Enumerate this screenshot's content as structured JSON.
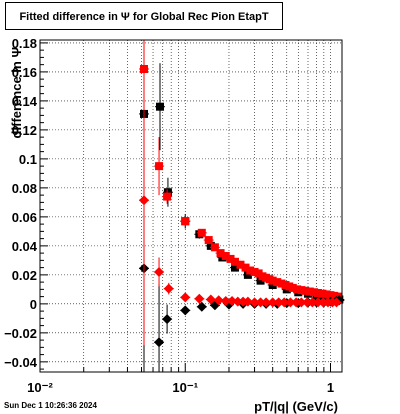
{
  "title": "Fitted difference in  Ψ  for Global Rec Pion EtapT",
  "footer": "Sun Dec  1 10:26:36 2024",
  "chart_data": {
    "type": "scatter",
    "title": "Fitted difference in  Ψ  for Global Rec Pion EtapT",
    "xlabel": "pT/|q| (GeV/c)",
    "ylabel": "difference in  Ψ",
    "x_scale": "log",
    "xlim": [
      0.01,
      1.2
    ],
    "ylim": [
      -0.047,
      0.182
    ],
    "grid": true,
    "x_ticks": [
      {
        "value": 0.01,
        "label": "10⁻²"
      },
      {
        "value": 0.1,
        "label": "10⁻¹"
      },
      {
        "value": 1,
        "label": "1"
      }
    ],
    "y_ticks": [
      {
        "value": -0.04,
        "label": "−0.04"
      },
      {
        "value": -0.02,
        "label": "−0.02"
      },
      {
        "value": 0,
        "label": "0"
      },
      {
        "value": 0.02,
        "label": "0.02"
      },
      {
        "value": 0.04,
        "label": "0.04"
      },
      {
        "value": 0.06,
        "label": "0.06"
      },
      {
        "value": 0.08,
        "label": "0.08"
      },
      {
        "value": 0.1,
        "label": "0.1"
      },
      {
        "value": 0.12,
        "label": "0.12"
      },
      {
        "value": 0.14,
        "label": "0.14"
      },
      {
        "value": 0.16,
        "label": "0.16"
      },
      {
        "value": 0.18,
        "label": "0.18"
      }
    ],
    "series": [
      {
        "color": "#000000",
        "marker": "square",
        "x": [
          0.052,
          0.067,
          0.076,
          0.1,
          0.125,
          0.15,
          0.18,
          0.22,
          0.27,
          0.33,
          0.4,
          0.5,
          0.6,
          0.7,
          0.8,
          0.9,
          1.0,
          1.1,
          1.15
        ],
        "y": [
          0.131,
          0.136,
          0.077,
          0.057,
          0.048,
          0.04,
          0.032,
          0.025,
          0.02,
          0.016,
          0.013,
          0.01,
          0.008,
          0.007,
          0.006,
          0.005,
          0.004,
          0.003,
          0.003
        ],
        "yerr": [
          0.1,
          0.03,
          0.01,
          0.005,
          0.003,
          0.002,
          0.002,
          0.001,
          0.001,
          0.001,
          0.001,
          0.001,
          0.001,
          0.001,
          0.001,
          0.001,
          0.001,
          0.001,
          0.001
        ]
      },
      {
        "color": "#ff0000",
        "marker": "square",
        "x": [
          0.052,
          0.066,
          0.075,
          0.1,
          0.13,
          0.145,
          0.16,
          0.175,
          0.19,
          0.205,
          0.22,
          0.24,
          0.26,
          0.28,
          0.3,
          0.32,
          0.34,
          0.36,
          0.38,
          0.4,
          0.43,
          0.46,
          0.49,
          0.52,
          0.55,
          0.59,
          0.63,
          0.67,
          0.72,
          0.77,
          0.82,
          0.88,
          0.94,
          1.0,
          1.06,
          1.12
        ],
        "y": [
          0.162,
          0.095,
          0.074,
          0.057,
          0.049,
          0.044,
          0.039,
          0.035,
          0.033,
          0.031,
          0.029,
          0.027,
          0.025,
          0.023,
          0.022,
          0.021,
          0.019,
          0.018,
          0.017,
          0.016,
          0.015,
          0.014,
          0.013,
          0.012,
          0.011,
          0.01,
          0.0095,
          0.009,
          0.0085,
          0.008,
          0.0075,
          0.007,
          0.0065,
          0.006,
          0.0055,
          0.005
        ],
        "yerr": [
          0.1,
          0.02,
          0.005,
          0.003,
          0.002,
          0.002,
          0.001,
          0.001,
          0.001,
          0.001,
          0.001,
          0.001,
          0.001,
          0.001,
          0.001,
          0.001,
          0.001,
          0.001,
          0.001,
          0.001,
          0.001,
          0.001,
          0.001,
          0.001,
          0.001,
          0.001,
          0.001,
          0.001,
          0.001,
          0.001,
          0.001,
          0.001,
          0.001,
          0.001,
          0.001,
          0.001
        ]
      },
      {
        "color": "#000000",
        "marker": "diamond",
        "x": [
          0.052,
          0.066,
          0.075,
          0.1,
          0.13,
          0.16,
          0.2,
          0.25,
          0.3,
          0.36,
          0.43,
          0.5,
          0.6,
          0.7,
          0.8,
          0.9,
          1.0,
          1.1,
          1.15
        ],
        "y": [
          0.0245,
          -0.0265,
          -0.0105,
          -0.0045,
          -0.002,
          -0.001,
          -0.0005,
          0,
          0,
          0,
          0,
          0.0005,
          0.0005,
          0.001,
          0.001,
          0.001,
          0.0015,
          0.002,
          0.0025
        ],
        "yerr": [
          0.1,
          0.04,
          0.01,
          0.003,
          0.002,
          0.001,
          0.001,
          0.001,
          0.001,
          0.001,
          0.001,
          0.001,
          0.001,
          0.001,
          0.001,
          0.001,
          0.001,
          0.001,
          0.001
        ]
      },
      {
        "color": "#ff0000",
        "marker": "diamond",
        "x": [
          0.052,
          0.066,
          0.077,
          0.1,
          0.125,
          0.15,
          0.17,
          0.19,
          0.21,
          0.23,
          0.25,
          0.27,
          0.3,
          0.33,
          0.36,
          0.4,
          0.44,
          0.48,
          0.53,
          0.58,
          0.63,
          0.69,
          0.75,
          0.82,
          0.89,
          0.96,
          1.03,
          1.1
        ],
        "y": [
          0.0715,
          0.022,
          0.0105,
          0.0045,
          0.0035,
          0.003,
          0.0025,
          0.002,
          0.002,
          0.0015,
          0.0015,
          0.0015,
          0.001,
          0.001,
          0.001,
          0.001,
          0.001,
          0.001,
          0.001,
          0.001,
          0.001,
          0.001,
          0.001,
          0.001,
          0.001,
          0.001,
          0.001,
          0.001
        ],
        "yerr": [
          0.1,
          0.01,
          0.004,
          0.002,
          0.001,
          0.001,
          0.001,
          0.001,
          0.001,
          0.001,
          0.001,
          0.001,
          0.001,
          0.001,
          0.001,
          0.001,
          0.001,
          0.001,
          0.001,
          0.001,
          0.001,
          0.001,
          0.001,
          0.001,
          0.001,
          0.001,
          0.001,
          0.001
        ]
      }
    ]
  }
}
